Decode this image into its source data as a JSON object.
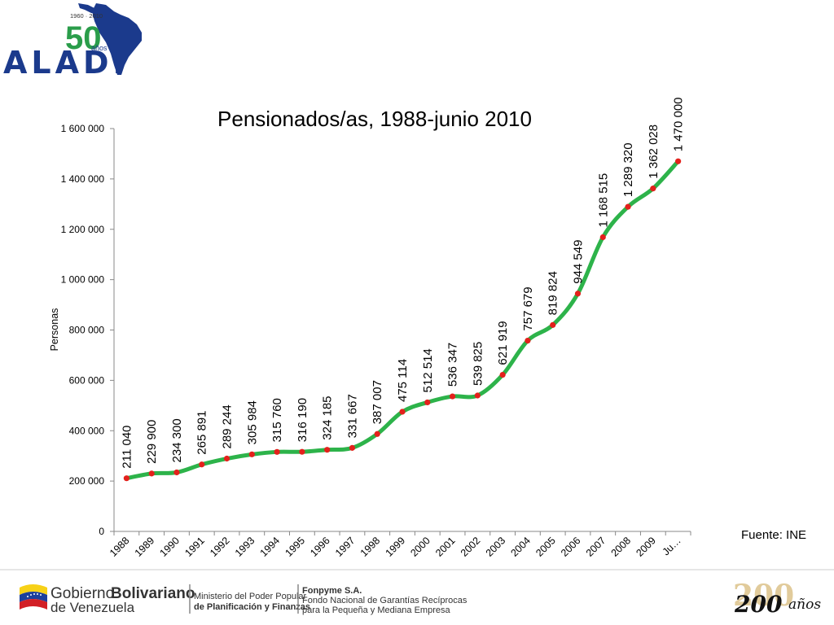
{
  "header": {
    "logo_text": "ALADI",
    "logo_years": "1960 · 2010",
    "logo_number": "50",
    "logo_subtext": "años"
  },
  "chart_data": {
    "type": "line",
    "title": "Pensionados/as, 1988-junio 2010",
    "ylabel": "Personas",
    "xlabel": "",
    "ylim": [
      0,
      1600000
    ],
    "yticks": [
      0,
      200000,
      400000,
      600000,
      800000,
      1000000,
      1200000,
      1400000,
      1600000
    ],
    "ytick_labels": [
      "0",
      "200 000",
      "400 000",
      "600 000",
      "800 000",
      "1 000 000",
      "1 200 000",
      "1 400 000",
      "1 600 000"
    ],
    "categories": [
      "1988",
      "1989",
      "1990",
      "1991",
      "1992",
      "1993",
      "1994",
      "1995",
      "1996",
      "1997",
      "1998",
      "1999",
      "2000",
      "2001",
      "2002",
      "2003",
      "2004",
      "2005",
      "2006",
      "2007",
      "2008",
      "2009",
      "Ju…"
    ],
    "series": [
      {
        "values": [
          211040,
          229900,
          234300,
          265891,
          289244,
          305984,
          315760,
          316190,
          324185,
          331667,
          387007,
          475114,
          512514,
          536347,
          539825,
          621919,
          757679,
          819824,
          944549,
          1168515,
          1289320,
          1362028,
          1470000
        ],
        "labels": [
          "211 040",
          "229 900",
          "234 300",
          "265 891",
          "289 244",
          "305 984",
          "315 760",
          "316 190",
          "324 185",
          "331 667",
          "387 007",
          "475 114",
          "512 514",
          "536 347",
          "539 825",
          "621 919",
          "757 679",
          "819 824",
          "944 549",
          "1 168 515",
          "1 289 320",
          "1 362 028",
          "1 470 000"
        ]
      }
    ],
    "line_color": "#2db34a",
    "marker_color": "#e3211c",
    "grid": false,
    "legend": "none",
    "source": "Fuente: INE"
  },
  "footer": {
    "gov_line1_a": "Gobierno",
    "gov_line1_b": "Bolivariano",
    "gov_line2": "de Venezuela",
    "ministry_line1": "Ministerio del Poder Popular",
    "ministry_line2": "de Planificación y Finanzas",
    "fonpyme_line1": "Fonpyme S.A.",
    "fonpyme_line2": "Fondo Nacional de Garantías Recíprocas",
    "fonpyme_line3": "para la Pequeña y Mediana Empresa",
    "bicentennial_number": "200",
    "bicentennial_script": "200",
    "bicentennial_word": "años"
  },
  "colors": {
    "aladi_blue": "#1b3a8c",
    "flag_yellow": "#f7d117",
    "flag_blue": "#1d3f9c",
    "flag_red": "#d21f26",
    "bicentennial_gold": "#c9a24a"
  }
}
